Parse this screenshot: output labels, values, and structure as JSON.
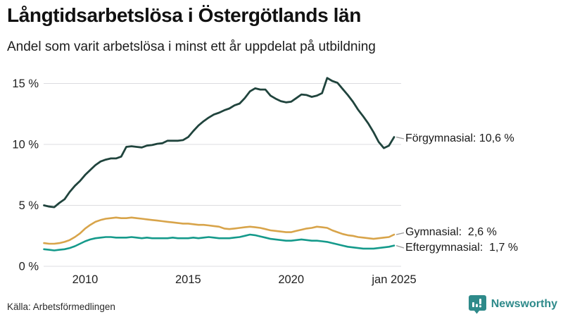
{
  "header": {
    "title": "Långtidsarbetslösa i Östergötlands län",
    "subtitle": "Andel som varit arbetslösa i minst ett år uppdelat på utbildning"
  },
  "footer": {
    "source": "Källa: Arbetsförmedlingen",
    "brand_name": "Newsworthy",
    "brand_color": "#2e8a8a",
    "brand_icon": "bar-chart-speech-bubble-icon"
  },
  "colors": {
    "grid": "#dcdce0",
    "axis_text": "#222222",
    "connector": "#999999",
    "background": "#ffffff"
  },
  "chart_data": {
    "type": "line",
    "title": "Långtidsarbetslösa i Östergötlands län",
    "subtitle": "Andel som varit arbetslösa i minst ett år uppdelat på utbildning",
    "xlabel": "",
    "ylabel": "",
    "grid": "horizontal",
    "legend_position": "right-end-labels",
    "xlim": [
      2008,
      2025.05
    ],
    "ylim": [
      0,
      15.5
    ],
    "x_start": 2008.0,
    "x_step": 0.25,
    "y_ticks": [
      {
        "value": 0,
        "label": "0 %"
      },
      {
        "value": 5,
        "label": "5 %"
      },
      {
        "value": 10,
        "label": "10 %"
      },
      {
        "value": 15,
        "label": "15 %"
      }
    ],
    "x_ticks": [
      {
        "value": 2010,
        "label": "2010"
      },
      {
        "value": 2015,
        "label": "2015"
      },
      {
        "value": 2020,
        "label": "2020"
      },
      {
        "value": 2025,
        "label": "jan 2025"
      }
    ],
    "series": [
      {
        "name": "Förgymnasial",
        "color": "#20443d",
        "stroke_width": 2.8,
        "end_value": 10.6,
        "end_label": "Förgymnasial: 10,6 %",
        "values": [
          5.0,
          4.9,
          4.85,
          5.2,
          5.5,
          6.1,
          6.6,
          7.0,
          7.5,
          7.9,
          8.3,
          8.6,
          8.75,
          8.85,
          8.85,
          9.0,
          9.8,
          9.85,
          9.8,
          9.75,
          9.9,
          9.95,
          10.05,
          10.1,
          10.3,
          10.3,
          10.3,
          10.35,
          10.6,
          11.1,
          11.55,
          11.9,
          12.2,
          12.45,
          12.6,
          12.8,
          12.95,
          13.2,
          13.35,
          13.8,
          14.35,
          14.6,
          14.5,
          14.5,
          14.0,
          13.75,
          13.55,
          13.45,
          13.5,
          13.8,
          14.1,
          14.05,
          13.9,
          14.0,
          14.2,
          15.45,
          15.2,
          15.05,
          14.55,
          14.05,
          13.5,
          12.85,
          12.3,
          11.7,
          11.0,
          10.2,
          9.7,
          9.9,
          10.6
        ]
      },
      {
        "name": "Gymnasial",
        "color": "#d8a44a",
        "stroke_width": 2.6,
        "end_value": 2.6,
        "end_label": "Gymnasial:  2,6 %",
        "values": [
          1.9,
          1.85,
          1.85,
          1.9,
          2.0,
          2.15,
          2.4,
          2.7,
          3.1,
          3.4,
          3.65,
          3.8,
          3.9,
          3.95,
          4.0,
          3.95,
          3.95,
          4.0,
          3.95,
          3.9,
          3.85,
          3.8,
          3.75,
          3.7,
          3.65,
          3.6,
          3.55,
          3.5,
          3.5,
          3.45,
          3.4,
          3.4,
          3.35,
          3.3,
          3.25,
          3.1,
          3.05,
          3.1,
          3.15,
          3.2,
          3.25,
          3.2,
          3.15,
          3.05,
          2.95,
          2.9,
          2.85,
          2.8,
          2.8,
          2.9,
          3.0,
          3.1,
          3.15,
          3.25,
          3.2,
          3.15,
          2.95,
          2.8,
          2.65,
          2.55,
          2.5,
          2.4,
          2.35,
          2.3,
          2.25,
          2.3,
          2.35,
          2.4,
          2.6
        ]
      },
      {
        "name": "Eftergymnasial",
        "color": "#159a8b",
        "stroke_width": 2.6,
        "end_value": 1.7,
        "end_label": "Eftergymnasial:  1,7 %",
        "values": [
          1.4,
          1.35,
          1.3,
          1.35,
          1.4,
          1.5,
          1.65,
          1.85,
          2.05,
          2.2,
          2.3,
          2.35,
          2.4,
          2.4,
          2.35,
          2.35,
          2.35,
          2.4,
          2.35,
          2.3,
          2.35,
          2.3,
          2.3,
          2.3,
          2.3,
          2.35,
          2.3,
          2.3,
          2.3,
          2.35,
          2.3,
          2.35,
          2.4,
          2.35,
          2.3,
          2.3,
          2.3,
          2.35,
          2.4,
          2.5,
          2.6,
          2.55,
          2.45,
          2.35,
          2.25,
          2.2,
          2.15,
          2.1,
          2.1,
          2.15,
          2.2,
          2.15,
          2.1,
          2.1,
          2.05,
          2.0,
          1.9,
          1.8,
          1.7,
          1.6,
          1.55,
          1.5,
          1.45,
          1.45,
          1.45,
          1.5,
          1.55,
          1.6,
          1.7
        ]
      }
    ]
  }
}
